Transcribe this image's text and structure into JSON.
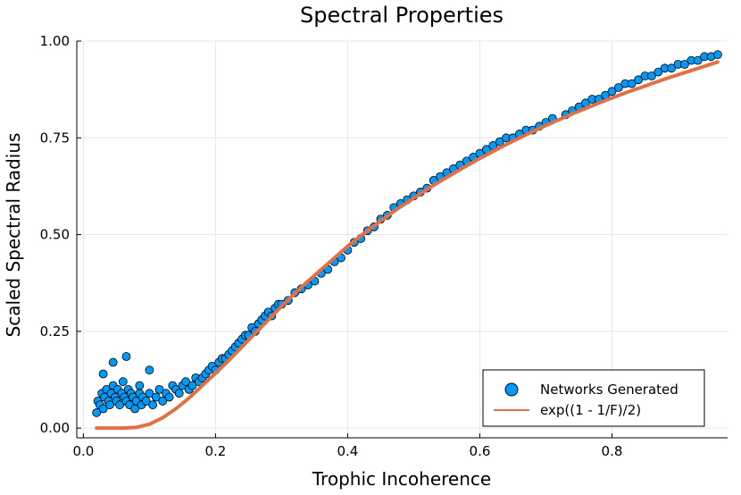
{
  "chart_data": {
    "type": "scatter",
    "title": "Spectral Properties",
    "xlabel": "Trophic Incoherence",
    "ylabel": "Scaled Spectral Radius",
    "xlim": [
      -0.01,
      0.975
    ],
    "ylim": [
      -0.025,
      1.0
    ],
    "x_ticks": [
      0.0,
      0.2,
      0.4,
      0.6,
      0.8
    ],
    "x_tick_labels": [
      "0.0",
      "0.2",
      "0.4",
      "0.6",
      "0.8"
    ],
    "y_ticks": [
      0.0,
      0.25,
      0.5,
      0.75,
      1.0
    ],
    "y_tick_labels": [
      "0.00",
      "0.25",
      "0.50",
      "0.75",
      "1.00"
    ],
    "grid": true,
    "legend_position": "bottom-right",
    "series": [
      {
        "name": "Networks Generated",
        "kind": "scatter",
        "color": "#009af9",
        "points": [
          [
            0.02,
            0.04
          ],
          [
            0.022,
            0.07
          ],
          [
            0.025,
            0.06
          ],
          [
            0.028,
            0.09
          ],
          [
            0.03,
            0.05
          ],
          [
            0.032,
            0.08
          ],
          [
            0.035,
            0.1
          ],
          [
            0.038,
            0.07
          ],
          [
            0.04,
            0.06
          ],
          [
            0.042,
            0.09
          ],
          [
            0.045,
            0.11
          ],
          [
            0.048,
            0.08
          ],
          [
            0.05,
            0.07
          ],
          [
            0.052,
            0.1
          ],
          [
            0.055,
            0.06
          ],
          [
            0.058,
            0.09
          ],
          [
            0.06,
            0.12
          ],
          [
            0.062,
            0.08
          ],
          [
            0.065,
            0.07
          ],
          [
            0.068,
            0.1
          ],
          [
            0.07,
            0.06
          ],
          [
            0.072,
            0.09
          ],
          [
            0.075,
            0.08
          ],
          [
            0.078,
            0.05
          ],
          [
            0.08,
            0.07
          ],
          [
            0.085,
            0.09
          ],
          [
            0.088,
            0.06
          ],
          [
            0.09,
            0.08
          ],
          [
            0.095,
            0.07
          ],
          [
            0.1,
            0.09
          ],
          [
            0.03,
            0.14
          ],
          [
            0.045,
            0.17
          ],
          [
            0.065,
            0.185
          ],
          [
            0.1,
            0.15
          ],
          [
            0.085,
            0.11
          ],
          [
            0.105,
            0.06
          ],
          [
            0.11,
            0.08
          ],
          [
            0.115,
            0.1
          ],
          [
            0.12,
            0.07
          ],
          [
            0.125,
            0.09
          ],
          [
            0.13,
            0.08
          ],
          [
            0.135,
            0.11
          ],
          [
            0.14,
            0.1
          ],
          [
            0.145,
            0.09
          ],
          [
            0.15,
            0.11
          ],
          [
            0.155,
            0.12
          ],
          [
            0.16,
            0.1
          ],
          [
            0.165,
            0.11
          ],
          [
            0.17,
            0.13
          ],
          [
            0.175,
            0.12
          ],
          [
            0.18,
            0.13
          ],
          [
            0.185,
            0.14
          ],
          [
            0.19,
            0.15
          ],
          [
            0.195,
            0.16
          ],
          [
            0.2,
            0.15
          ],
          [
            0.205,
            0.17
          ],
          [
            0.21,
            0.18
          ],
          [
            0.215,
            0.18
          ],
          [
            0.22,
            0.19
          ],
          [
            0.225,
            0.2
          ],
          [
            0.23,
            0.21
          ],
          [
            0.235,
            0.22
          ],
          [
            0.24,
            0.23
          ],
          [
            0.245,
            0.24
          ],
          [
            0.25,
            0.24
          ],
          [
            0.255,
            0.26
          ],
          [
            0.26,
            0.25
          ],
          [
            0.265,
            0.27
          ],
          [
            0.27,
            0.28
          ],
          [
            0.275,
            0.29
          ],
          [
            0.28,
            0.3
          ],
          [
            0.285,
            0.29
          ],
          [
            0.29,
            0.31
          ],
          [
            0.295,
            0.32
          ],
          [
            0.3,
            0.32
          ],
          [
            0.31,
            0.33
          ],
          [
            0.32,
            0.35
          ],
          [
            0.33,
            0.36
          ],
          [
            0.34,
            0.37
          ],
          [
            0.35,
            0.38
          ],
          [
            0.36,
            0.4
          ],
          [
            0.37,
            0.41
          ],
          [
            0.38,
            0.43
          ],
          [
            0.39,
            0.44
          ],
          [
            0.4,
            0.46
          ],
          [
            0.41,
            0.48
          ],
          [
            0.42,
            0.49
          ],
          [
            0.43,
            0.51
          ],
          [
            0.44,
            0.52
          ],
          [
            0.45,
            0.54
          ],
          [
            0.46,
            0.55
          ],
          [
            0.47,
            0.57
          ],
          [
            0.48,
            0.58
          ],
          [
            0.49,
            0.59
          ],
          [
            0.5,
            0.6
          ],
          [
            0.51,
            0.61
          ],
          [
            0.52,
            0.62
          ],
          [
            0.53,
            0.64
          ],
          [
            0.54,
            0.65
          ],
          [
            0.55,
            0.66
          ],
          [
            0.56,
            0.67
          ],
          [
            0.57,
            0.68
          ],
          [
            0.58,
            0.69
          ],
          [
            0.59,
            0.7
          ],
          [
            0.6,
            0.71
          ],
          [
            0.61,
            0.72
          ],
          [
            0.62,
            0.73
          ],
          [
            0.63,
            0.74
          ],
          [
            0.64,
            0.75
          ],
          [
            0.65,
            0.75
          ],
          [
            0.66,
            0.76
          ],
          [
            0.67,
            0.77
          ],
          [
            0.68,
            0.77
          ],
          [
            0.69,
            0.78
          ],
          [
            0.7,
            0.79
          ],
          [
            0.71,
            0.8
          ],
          [
            0.73,
            0.81
          ],
          [
            0.74,
            0.82
          ],
          [
            0.75,
            0.83
          ],
          [
            0.76,
            0.84
          ],
          [
            0.77,
            0.85
          ],
          [
            0.78,
            0.85
          ],
          [
            0.79,
            0.86
          ],
          [
            0.8,
            0.87
          ],
          [
            0.81,
            0.88
          ],
          [
            0.82,
            0.89
          ],
          [
            0.83,
            0.89
          ],
          [
            0.84,
            0.9
          ],
          [
            0.85,
            0.91
          ],
          [
            0.86,
            0.91
          ],
          [
            0.87,
            0.92
          ],
          [
            0.88,
            0.93
          ],
          [
            0.89,
            0.93
          ],
          [
            0.9,
            0.94
          ],
          [
            0.91,
            0.94
          ],
          [
            0.92,
            0.95
          ],
          [
            0.93,
            0.95
          ],
          [
            0.94,
            0.96
          ],
          [
            0.95,
            0.96
          ],
          [
            0.96,
            0.965
          ]
        ]
      },
      {
        "name": "exp((1 - 1/F)/2)",
        "kind": "line",
        "color": "#e26f46",
        "x": [
          0.02,
          0.04,
          0.06,
          0.08,
          0.1,
          0.12,
          0.14,
          0.16,
          0.18,
          0.2,
          0.22,
          0.24,
          0.26,
          0.28,
          0.3,
          0.32,
          0.34,
          0.36,
          0.38,
          0.4,
          0.42,
          0.44,
          0.46,
          0.48,
          0.5,
          0.52,
          0.54,
          0.56,
          0.58,
          0.6,
          0.62,
          0.64,
          0.66,
          0.68,
          0.7,
          0.72,
          0.74,
          0.76,
          0.78,
          0.8,
          0.82,
          0.84,
          0.86,
          0.88,
          0.9,
          0.92,
          0.94,
          0.96
        ],
        "y": [
          0.0,
          0.0,
          0.0,
          0.002,
          0.01,
          0.027,
          0.05,
          0.078,
          0.11,
          0.142,
          0.175,
          0.21,
          0.245,
          0.28,
          0.315,
          0.348,
          0.38,
          0.41,
          0.44,
          0.47,
          0.497,
          0.523,
          0.548,
          0.572,
          0.594,
          0.617,
          0.638,
          0.658,
          0.678,
          0.697,
          0.715,
          0.733,
          0.75,
          0.766,
          0.782,
          0.797,
          0.812,
          0.826,
          0.84,
          0.853,
          0.866,
          0.878,
          0.89,
          0.902,
          0.913,
          0.924,
          0.935,
          0.946
        ]
      }
    ]
  }
}
